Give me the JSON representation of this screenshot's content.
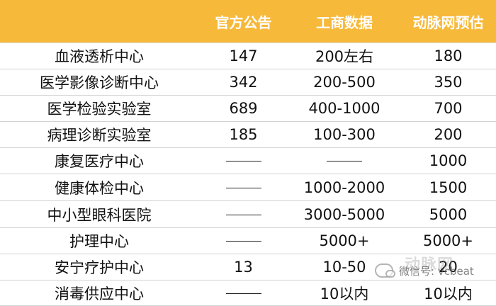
{
  "table": {
    "headers": [
      "",
      "官方公告",
      "工商数据",
      "动脉网预估"
    ],
    "rows": [
      [
        "血液透析中心",
        "147",
        "200左右",
        "180"
      ],
      [
        "医学影像诊断中心",
        "342",
        "200-500",
        "350"
      ],
      [
        "医学检验实验室",
        "689",
        "400-1000",
        "700"
      ],
      [
        "病理诊断实验室",
        "185",
        "100-300",
        "200"
      ],
      [
        "康复医疗中心",
        "——",
        "——",
        "1000"
      ],
      [
        "健康体检中心",
        "——",
        "1000-2000",
        "1500"
      ],
      [
        "中小型眼科医院",
        "——",
        "3000-5000",
        "5000"
      ],
      [
        "护理中心",
        "——",
        "5000+",
        "5000+"
      ],
      [
        "安宁疗护中心",
        "13",
        "10-50",
        "20"
      ],
      [
        "消毒供应中心",
        "——",
        "10以内",
        "10以内"
      ]
    ]
  },
  "watermark": {
    "logo": "动脉网",
    "text": "微信号: vcbeat"
  }
}
